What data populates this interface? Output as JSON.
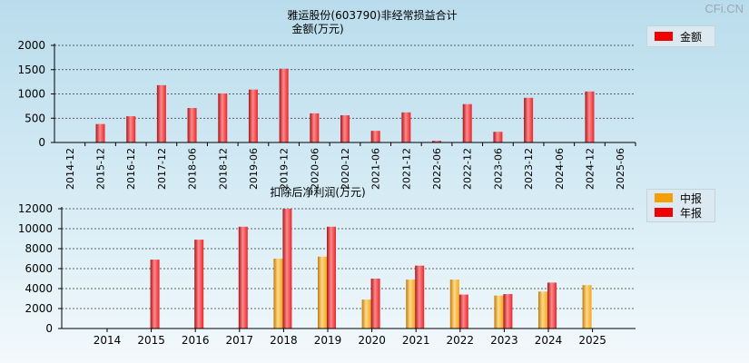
{
  "watermark": "CFi.CN",
  "colors": {
    "annual": "#e8262b",
    "interim": "#f2a71c",
    "legend_red": "#f00000",
    "legend_orange": "#f5a000"
  },
  "chart_data": [
    {
      "type": "bar",
      "title": "雅运股份(603790)非经常损益合计",
      "subtitle": "金额(万元)",
      "legend": [
        "金额"
      ],
      "legend_position": "top-right",
      "categories": [
        "2014-12",
        "2015-12",
        "2016-12",
        "2017-12",
        "2018-06",
        "2018-12",
        "2019-06",
        "2019-12",
        "2020-06",
        "2020-12",
        "2021-06",
        "2021-12",
        "2022-06",
        "2022-12",
        "2023-06",
        "2023-12",
        "2024-06",
        "2024-12",
        "2025-06"
      ],
      "values": [
        0,
        380,
        540,
        1180,
        710,
        1010,
        1090,
        1520,
        600,
        560,
        240,
        620,
        35,
        790,
        220,
        920,
        0,
        1050,
        0
      ],
      "ylim": [
        0,
        2000
      ],
      "yticks": [
        "0",
        "500",
        "1000",
        "1500",
        "2000"
      ],
      "grid": true
    },
    {
      "type": "bar",
      "title": "扣除后净利润(万元)",
      "legend": [
        "中报",
        "年报"
      ],
      "legend_position": "top-right",
      "categories": [
        "2014",
        "2015",
        "2016",
        "2017",
        "2018",
        "2019",
        "2020",
        "2021",
        "2022",
        "2023",
        "2024",
        "2025"
      ],
      "series": [
        {
          "name": "中报",
          "values": [
            null,
            null,
            null,
            null,
            7000,
            7200,
            2900,
            4900,
            4900,
            3300,
            3700,
            4350
          ]
        },
        {
          "name": "年报",
          "values": [
            null,
            6900,
            8900,
            10200,
            12000,
            10200,
            5000,
            6300,
            3400,
            3450,
            4600,
            null
          ]
        }
      ],
      "ylim": [
        0,
        12000
      ],
      "yticks": [
        "0",
        "2000",
        "4000",
        "6000",
        "8000",
        "10000",
        "12000"
      ],
      "grid": true
    }
  ]
}
